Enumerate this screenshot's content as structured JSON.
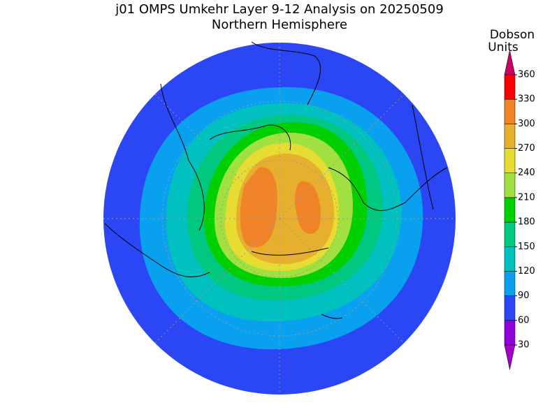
{
  "header": {
    "title": "j01 OMPS Umkehr Layer 9-12 Analysis on 20250509",
    "subtitle": "Northern Hemisphere"
  },
  "colorbar": {
    "label_lines": [
      "Dobson",
      "Units"
    ],
    "range": [
      30,
      360
    ],
    "ticks": [
      30,
      60,
      90,
      120,
      150,
      180,
      210,
      240,
      270,
      300,
      330,
      360
    ],
    "below_color": "#a000c8",
    "colors": [
      "#9000d8",
      "#2a46f5",
      "#0aa0f0",
      "#00c0c0",
      "#00c880",
      "#00d000",
      "#a0e040",
      "#e6dc32",
      "#e6af2d",
      "#f08228",
      "#fa0000"
    ],
    "above_color": "#c80064"
  }
}
